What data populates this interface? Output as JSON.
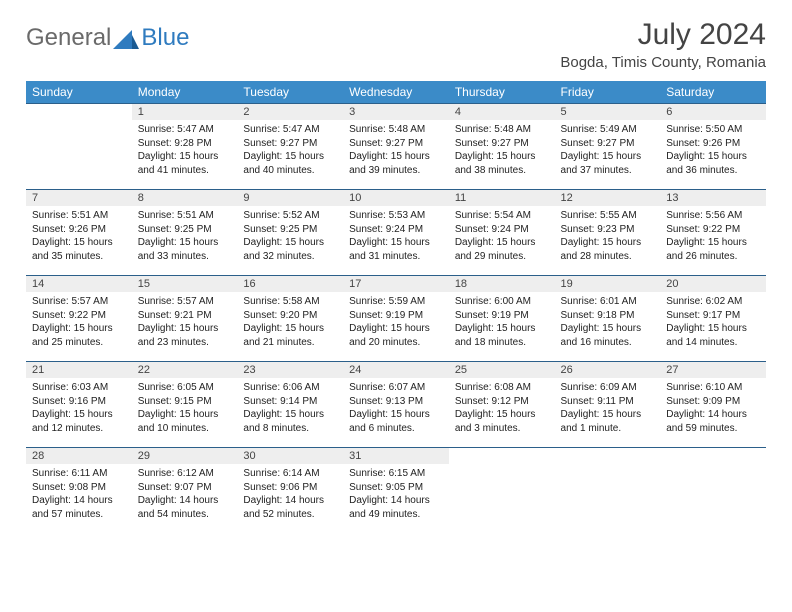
{
  "brand": {
    "general": "General",
    "blue": "Blue"
  },
  "title": "July 2024",
  "location": "Bogda, Timis County, Romania",
  "colors": {
    "header_bg": "#3b8bc8",
    "header_text": "#ffffff",
    "border": "#2b5f8a",
    "daynum_bg": "#eeeeee",
    "logo_gray": "#6a6a6a",
    "logo_blue": "#2f7bbf"
  },
  "weekdays": [
    "Sunday",
    "Monday",
    "Tuesday",
    "Wednesday",
    "Thursday",
    "Friday",
    "Saturday"
  ],
  "weeks": [
    [
      {
        "n": "",
        "sr": "",
        "ss": "",
        "dl": ""
      },
      {
        "n": "1",
        "sr": "Sunrise: 5:47 AM",
        "ss": "Sunset: 9:28 PM",
        "dl": "Daylight: 15 hours and 41 minutes."
      },
      {
        "n": "2",
        "sr": "Sunrise: 5:47 AM",
        "ss": "Sunset: 9:27 PM",
        "dl": "Daylight: 15 hours and 40 minutes."
      },
      {
        "n": "3",
        "sr": "Sunrise: 5:48 AM",
        "ss": "Sunset: 9:27 PM",
        "dl": "Daylight: 15 hours and 39 minutes."
      },
      {
        "n": "4",
        "sr": "Sunrise: 5:48 AM",
        "ss": "Sunset: 9:27 PM",
        "dl": "Daylight: 15 hours and 38 minutes."
      },
      {
        "n": "5",
        "sr": "Sunrise: 5:49 AM",
        "ss": "Sunset: 9:27 PM",
        "dl": "Daylight: 15 hours and 37 minutes."
      },
      {
        "n": "6",
        "sr": "Sunrise: 5:50 AM",
        "ss": "Sunset: 9:26 PM",
        "dl": "Daylight: 15 hours and 36 minutes."
      }
    ],
    [
      {
        "n": "7",
        "sr": "Sunrise: 5:51 AM",
        "ss": "Sunset: 9:26 PM",
        "dl": "Daylight: 15 hours and 35 minutes."
      },
      {
        "n": "8",
        "sr": "Sunrise: 5:51 AM",
        "ss": "Sunset: 9:25 PM",
        "dl": "Daylight: 15 hours and 33 minutes."
      },
      {
        "n": "9",
        "sr": "Sunrise: 5:52 AM",
        "ss": "Sunset: 9:25 PM",
        "dl": "Daylight: 15 hours and 32 minutes."
      },
      {
        "n": "10",
        "sr": "Sunrise: 5:53 AM",
        "ss": "Sunset: 9:24 PM",
        "dl": "Daylight: 15 hours and 31 minutes."
      },
      {
        "n": "11",
        "sr": "Sunrise: 5:54 AM",
        "ss": "Sunset: 9:24 PM",
        "dl": "Daylight: 15 hours and 29 minutes."
      },
      {
        "n": "12",
        "sr": "Sunrise: 5:55 AM",
        "ss": "Sunset: 9:23 PM",
        "dl": "Daylight: 15 hours and 28 minutes."
      },
      {
        "n": "13",
        "sr": "Sunrise: 5:56 AM",
        "ss": "Sunset: 9:22 PM",
        "dl": "Daylight: 15 hours and 26 minutes."
      }
    ],
    [
      {
        "n": "14",
        "sr": "Sunrise: 5:57 AM",
        "ss": "Sunset: 9:22 PM",
        "dl": "Daylight: 15 hours and 25 minutes."
      },
      {
        "n": "15",
        "sr": "Sunrise: 5:57 AM",
        "ss": "Sunset: 9:21 PM",
        "dl": "Daylight: 15 hours and 23 minutes."
      },
      {
        "n": "16",
        "sr": "Sunrise: 5:58 AM",
        "ss": "Sunset: 9:20 PM",
        "dl": "Daylight: 15 hours and 21 minutes."
      },
      {
        "n": "17",
        "sr": "Sunrise: 5:59 AM",
        "ss": "Sunset: 9:19 PM",
        "dl": "Daylight: 15 hours and 20 minutes."
      },
      {
        "n": "18",
        "sr": "Sunrise: 6:00 AM",
        "ss": "Sunset: 9:19 PM",
        "dl": "Daylight: 15 hours and 18 minutes."
      },
      {
        "n": "19",
        "sr": "Sunrise: 6:01 AM",
        "ss": "Sunset: 9:18 PM",
        "dl": "Daylight: 15 hours and 16 minutes."
      },
      {
        "n": "20",
        "sr": "Sunrise: 6:02 AM",
        "ss": "Sunset: 9:17 PM",
        "dl": "Daylight: 15 hours and 14 minutes."
      }
    ],
    [
      {
        "n": "21",
        "sr": "Sunrise: 6:03 AM",
        "ss": "Sunset: 9:16 PM",
        "dl": "Daylight: 15 hours and 12 minutes."
      },
      {
        "n": "22",
        "sr": "Sunrise: 6:05 AM",
        "ss": "Sunset: 9:15 PM",
        "dl": "Daylight: 15 hours and 10 minutes."
      },
      {
        "n": "23",
        "sr": "Sunrise: 6:06 AM",
        "ss": "Sunset: 9:14 PM",
        "dl": "Daylight: 15 hours and 8 minutes."
      },
      {
        "n": "24",
        "sr": "Sunrise: 6:07 AM",
        "ss": "Sunset: 9:13 PM",
        "dl": "Daylight: 15 hours and 6 minutes."
      },
      {
        "n": "25",
        "sr": "Sunrise: 6:08 AM",
        "ss": "Sunset: 9:12 PM",
        "dl": "Daylight: 15 hours and 3 minutes."
      },
      {
        "n": "26",
        "sr": "Sunrise: 6:09 AM",
        "ss": "Sunset: 9:11 PM",
        "dl": "Daylight: 15 hours and 1 minute."
      },
      {
        "n": "27",
        "sr": "Sunrise: 6:10 AM",
        "ss": "Sunset: 9:09 PM",
        "dl": "Daylight: 14 hours and 59 minutes."
      }
    ],
    [
      {
        "n": "28",
        "sr": "Sunrise: 6:11 AM",
        "ss": "Sunset: 9:08 PM",
        "dl": "Daylight: 14 hours and 57 minutes."
      },
      {
        "n": "29",
        "sr": "Sunrise: 6:12 AM",
        "ss": "Sunset: 9:07 PM",
        "dl": "Daylight: 14 hours and 54 minutes."
      },
      {
        "n": "30",
        "sr": "Sunrise: 6:14 AM",
        "ss": "Sunset: 9:06 PM",
        "dl": "Daylight: 14 hours and 52 minutes."
      },
      {
        "n": "31",
        "sr": "Sunrise: 6:15 AM",
        "ss": "Sunset: 9:05 PM",
        "dl": "Daylight: 14 hours and 49 minutes."
      },
      {
        "n": "",
        "sr": "",
        "ss": "",
        "dl": ""
      },
      {
        "n": "",
        "sr": "",
        "ss": "",
        "dl": ""
      },
      {
        "n": "",
        "sr": "",
        "ss": "",
        "dl": ""
      }
    ]
  ]
}
